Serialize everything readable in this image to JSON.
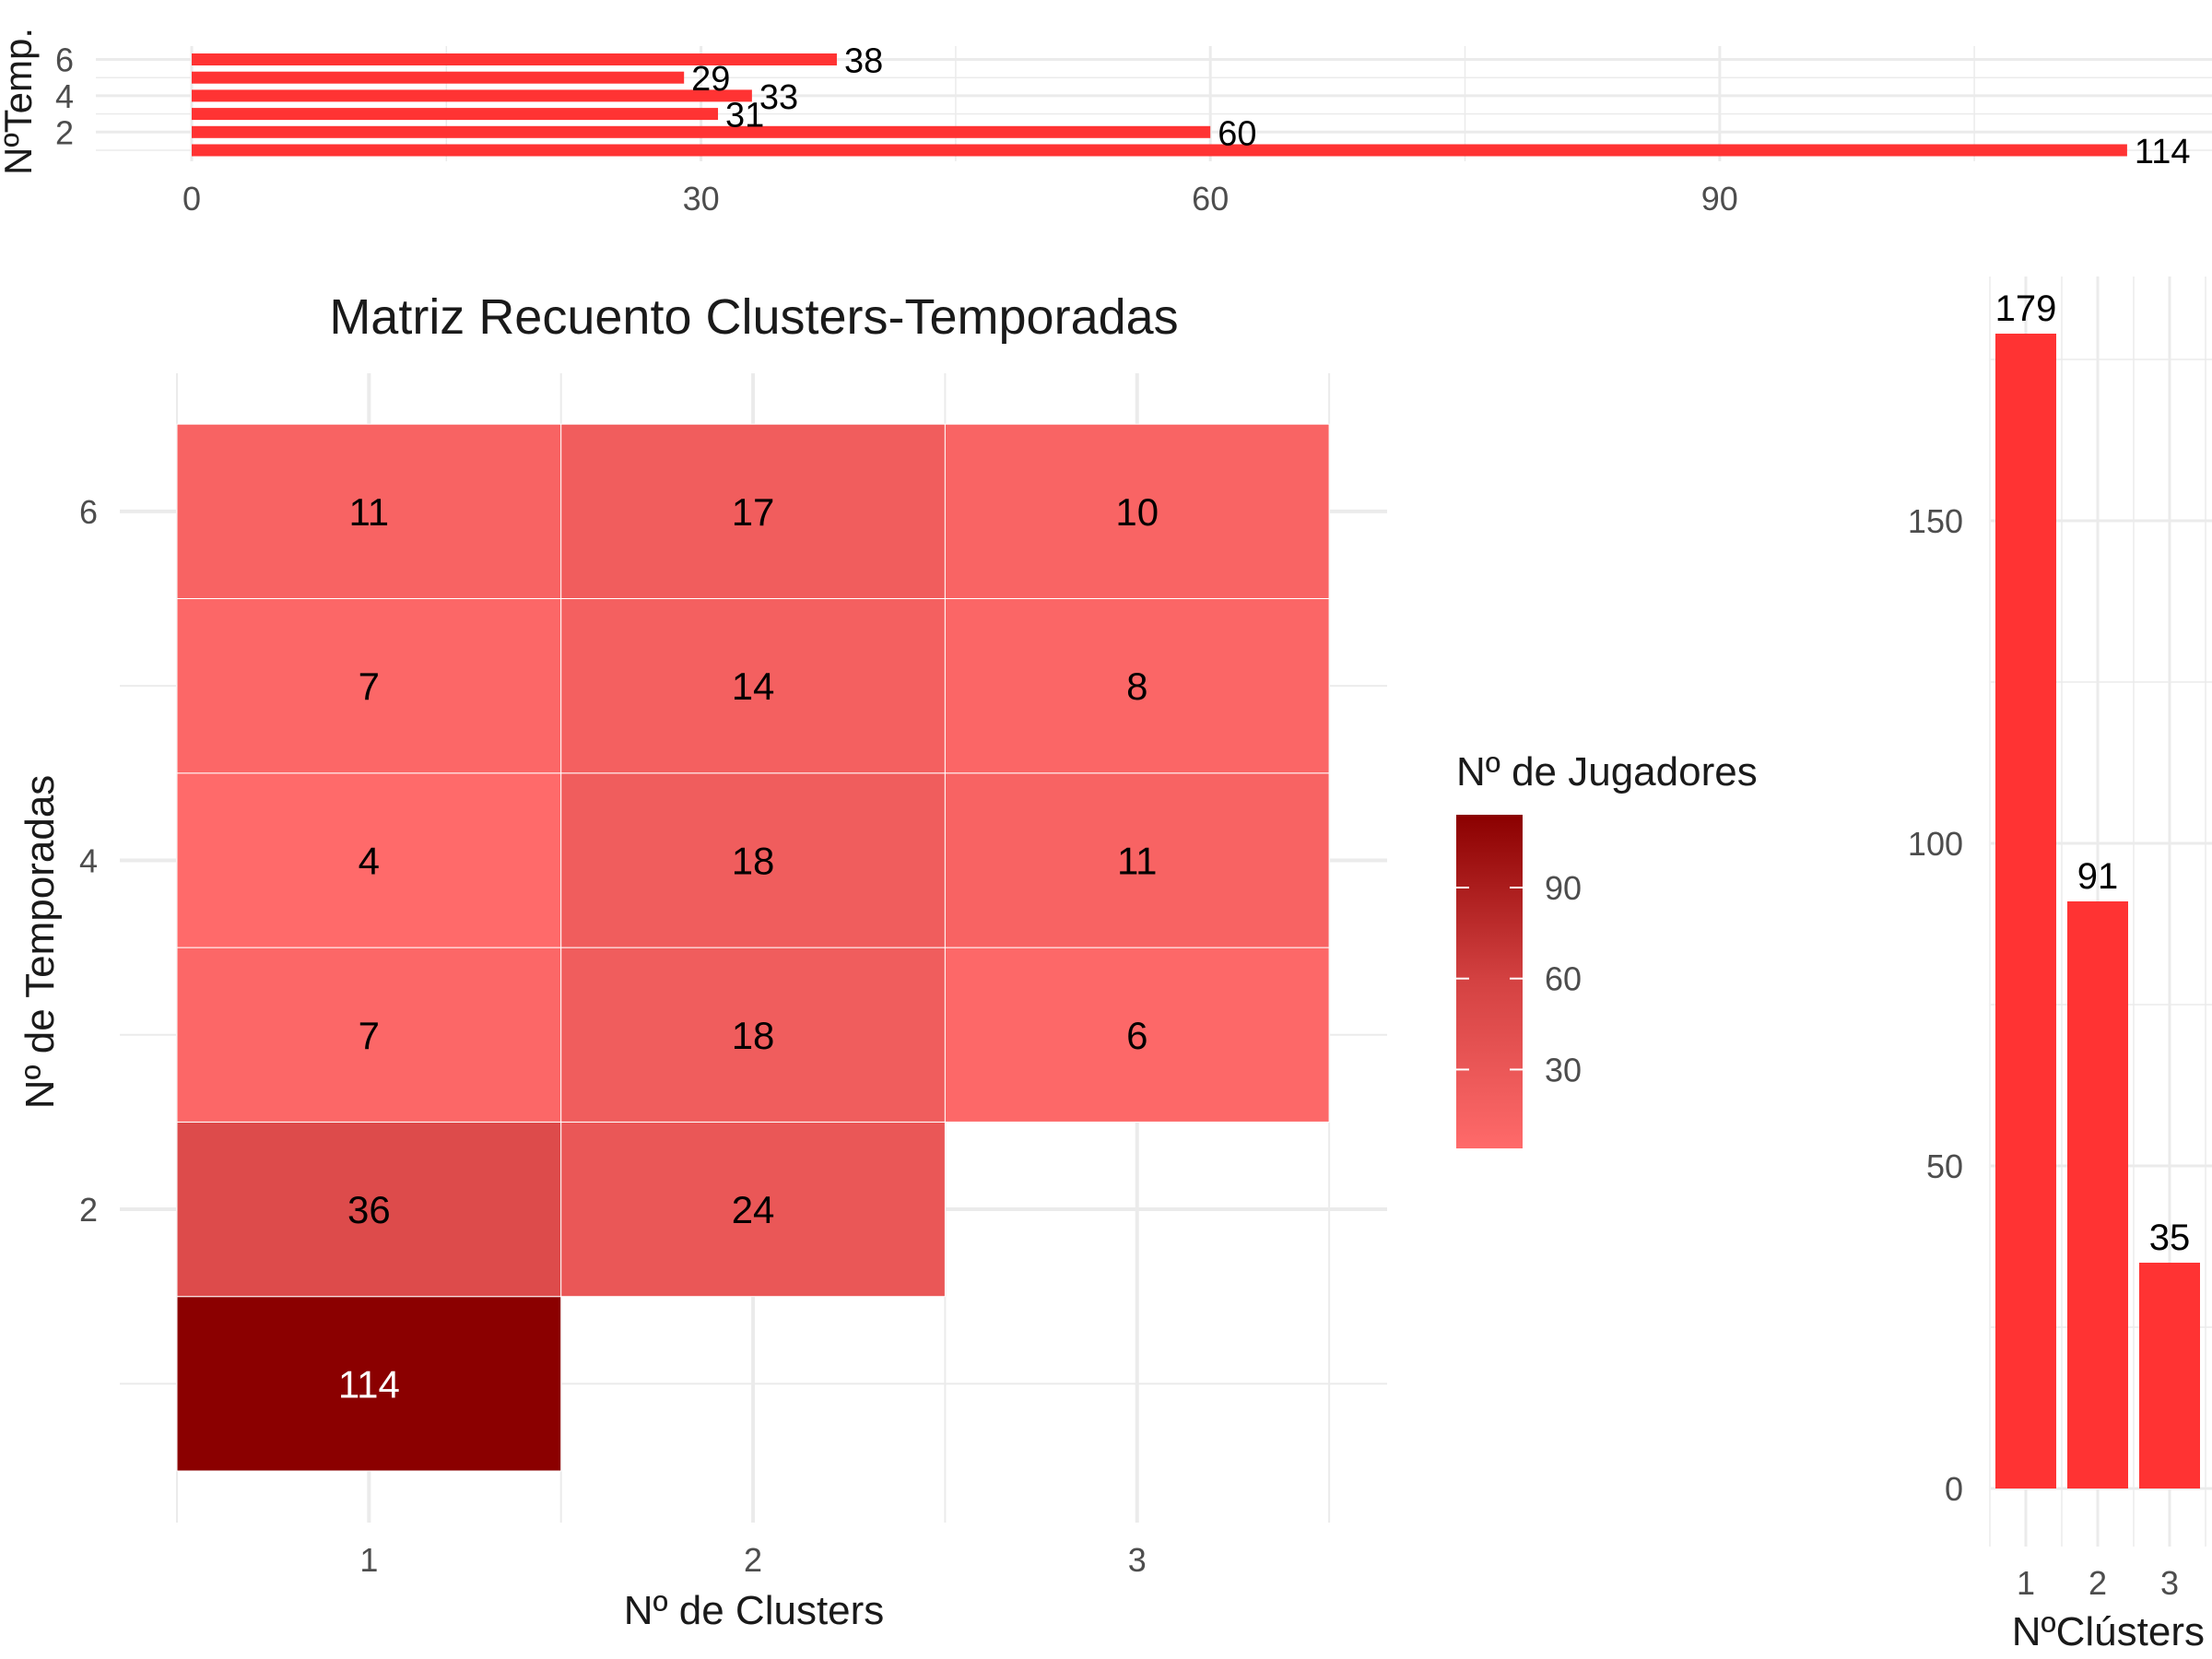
{
  "colors": {
    "bar": "#ff3333",
    "grid": "#ebebeb",
    "low": "#ff6a6a",
    "high": "#8b0000"
  },
  "chart_data": [
    {
      "type": "bar",
      "orientation": "horizontal",
      "ylabel": "NºTemp.",
      "xlim": [
        0,
        119
      ],
      "x_ticks": [
        0,
        30,
        60,
        90
      ],
      "y_ticks": [
        2,
        4,
        6
      ],
      "categories": [
        1,
        2,
        3,
        4,
        5,
        6
      ],
      "values": [
        114,
        60,
        31,
        33,
        29,
        38
      ]
    },
    {
      "type": "heatmap",
      "title": "Matriz Recuento Clusters-Temporadas",
      "xlabel": "Nº de Clusters",
      "ylabel": "Nº de Temporadas",
      "x_ticks": [
        1,
        2,
        3
      ],
      "y_ticks": [
        2,
        4,
        6
      ],
      "legend_title": "Nº de Jugadores",
      "legend_ticks": [
        30,
        60,
        90
      ],
      "value_range": [
        4,
        114
      ],
      "cells": [
        {
          "x": 1,
          "y": 1,
          "value": 114
        },
        {
          "x": 1,
          "y": 2,
          "value": 36
        },
        {
          "x": 1,
          "y": 3,
          "value": 7
        },
        {
          "x": 1,
          "y": 4,
          "value": 4
        },
        {
          "x": 1,
          "y": 5,
          "value": 7
        },
        {
          "x": 1,
          "y": 6,
          "value": 11
        },
        {
          "x": 2,
          "y": 2,
          "value": 24
        },
        {
          "x": 2,
          "y": 3,
          "value": 18
        },
        {
          "x": 2,
          "y": 4,
          "value": 18
        },
        {
          "x": 2,
          "y": 5,
          "value": 14
        },
        {
          "x": 2,
          "y": 6,
          "value": 17
        },
        {
          "x": 3,
          "y": 3,
          "value": 6
        },
        {
          "x": 3,
          "y": 4,
          "value": 11
        },
        {
          "x": 3,
          "y": 5,
          "value": 8
        },
        {
          "x": 3,
          "y": 6,
          "value": 10
        }
      ]
    },
    {
      "type": "bar",
      "xlabel": "NºClústers",
      "categories": [
        1,
        2,
        3
      ],
      "values": [
        179,
        91,
        35
      ],
      "ylim": [
        0,
        188
      ],
      "y_ticks": [
        0,
        50,
        100,
        150
      ]
    }
  ]
}
